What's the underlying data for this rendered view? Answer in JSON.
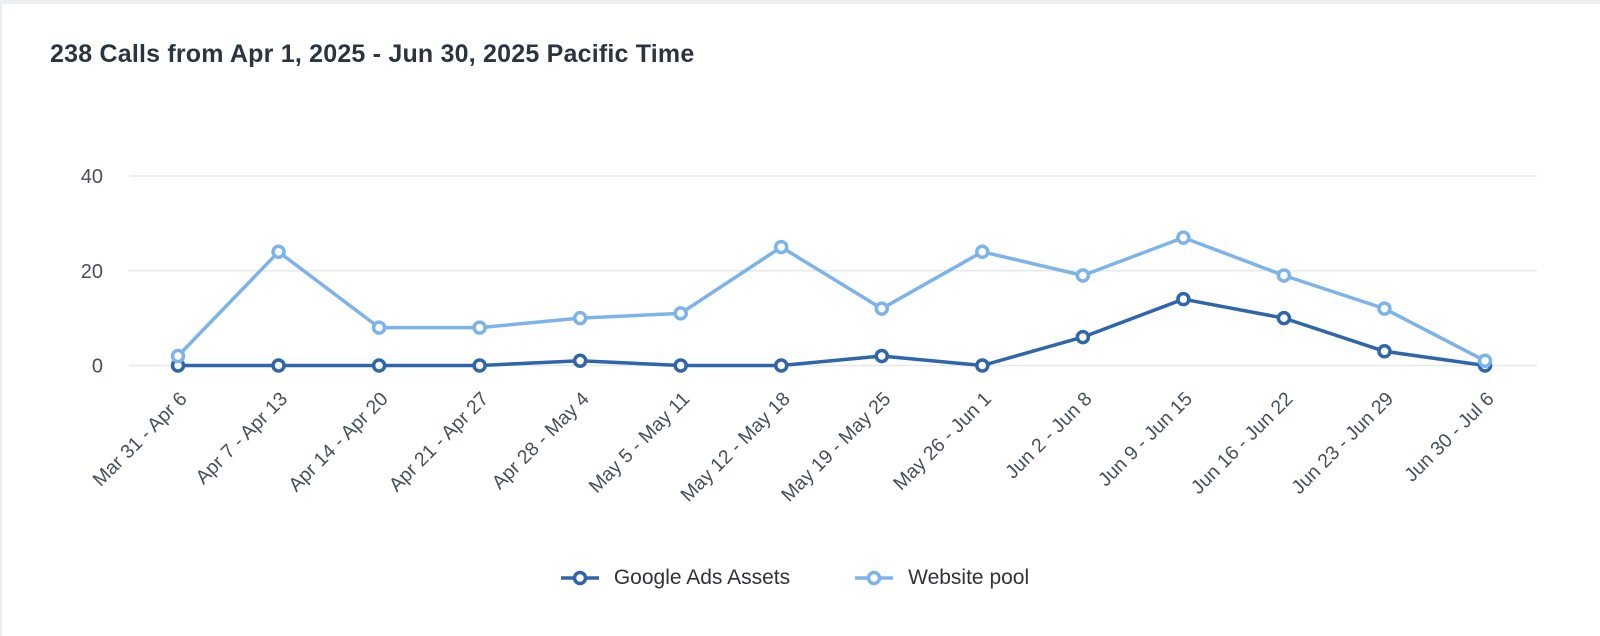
{
  "header": {
    "title": "238 Calls from Apr 1, 2025 - Jun 30, 2025 Pacific Time"
  },
  "colors": {
    "grid": "#e6e9ec",
    "axis_text": "#46505c",
    "title_text": "#2b3540",
    "legend_text": "#2f3338",
    "marker_fill": "#ffffff"
  },
  "chart_data": {
    "type": "line",
    "title": "238 Calls from Apr 1, 2025 - Jun 30, 2025 Pacific Time",
    "categories": [
      "Mar 31 - Apr 6",
      "Apr 7 - Apr 13",
      "Apr 14 - Apr 20",
      "Apr 21 - Apr 27",
      "Apr 28 - May 4",
      "May 5 - May 11",
      "May 12 - May 18",
      "May 19 - May 25",
      "May 26 - Jun 1",
      "Jun 2 - Jun 8",
      "Jun 9 - Jun 15",
      "Jun 16 - Jun 22",
      "Jun 23 - Jun 29",
      "Jun 30 - Jul 6"
    ],
    "series": [
      {
        "name": "Google Ads Assets",
        "color": "#2e65ab",
        "values": [
          0,
          0,
          0,
          0,
          1,
          0,
          0,
          2,
          0,
          6,
          14,
          10,
          3,
          0
        ]
      },
      {
        "name": "Website pool",
        "color": "#7db3eb",
        "values": [
          2,
          24,
          8,
          8,
          10,
          11,
          25,
          12,
          24,
          19,
          27,
          19,
          12,
          1
        ]
      }
    ],
    "xlabel": "",
    "ylabel": "",
    "y_axis": {
      "ticks": [
        0,
        20,
        40
      ],
      "min": 0,
      "max": 40
    },
    "grid": true,
    "legend_position": "bottom",
    "x_label_rotation_deg": -45
  },
  "legend": {
    "items": [
      {
        "label": "Google Ads Assets",
        "color": "#2e65ab"
      },
      {
        "label": "Website pool",
        "color": "#7db3eb"
      }
    ]
  }
}
